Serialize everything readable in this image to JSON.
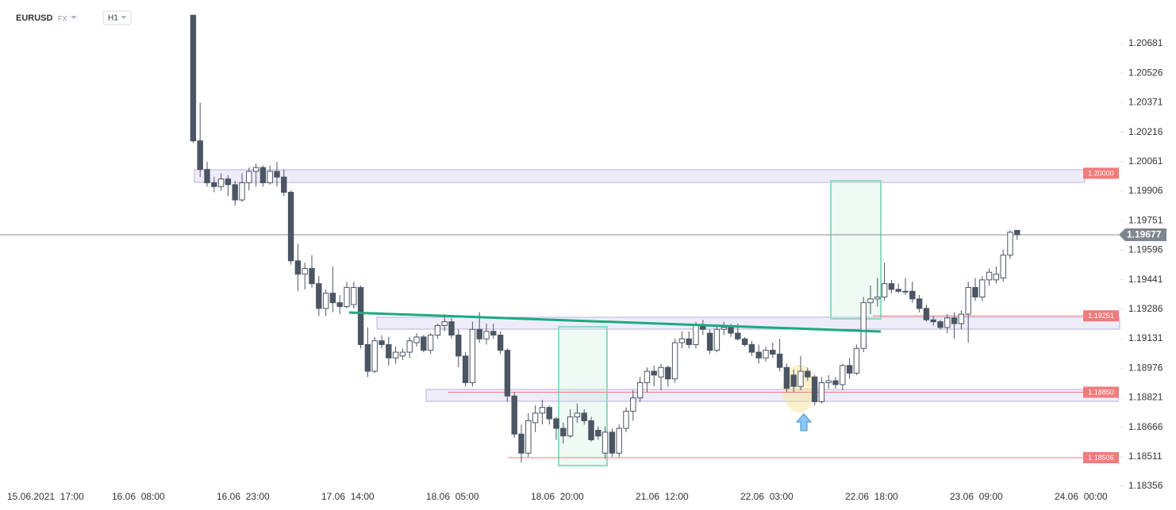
{
  "header": {
    "symbol": "EURUSD",
    "market": "FX",
    "interval": "H1"
  },
  "chart_data": {
    "type": "candlestick",
    "categories": [
      "15.06.2021  17:00",
      null,
      null,
      null,
      null,
      null,
      null,
      null,
      null,
      null,
      null,
      null,
      null,
      null,
      null,
      "16.06  08:00",
      null,
      null,
      null,
      null,
      null,
      null,
      null,
      null,
      null,
      null,
      null,
      null,
      null,
      null,
      "16.06  23:00",
      null,
      null,
      null,
      null,
      null,
      null,
      null,
      null,
      null,
      null,
      null,
      null,
      null,
      null,
      "17.06  14:00",
      null,
      null,
      null,
      null,
      null,
      null,
      null,
      null,
      null,
      null,
      null,
      null,
      null,
      null,
      "18.06  05:00",
      null,
      null,
      null,
      null,
      null,
      null,
      null,
      null,
      null,
      null,
      null,
      null,
      null,
      null,
      "18.06  20:00",
      null,
      null,
      null,
      null,
      null,
      null,
      null,
      null,
      null,
      null,
      null,
      null,
      null,
      null,
      "21.06  12:00",
      null,
      null,
      null,
      null,
      null,
      null,
      null,
      null,
      null,
      null,
      null,
      null,
      null,
      null,
      "22.06  03:00",
      null,
      null,
      null,
      null,
      null,
      null,
      null,
      null,
      null,
      null,
      null,
      null,
      null,
      null,
      "22.06  18:00",
      null,
      null,
      null,
      null,
      null,
      null,
      null,
      null,
      null,
      null,
      null,
      null,
      null,
      null,
      "23.06  09:00",
      null,
      null,
      null,
      null,
      null,
      null,
      null,
      null,
      null,
      null,
      null,
      null,
      null,
      null,
      "24.06  00:00"
    ],
    "open": [
      null,
      null,
      null,
      null,
      null,
      null,
      null,
      null,
      null,
      null,
      null,
      null,
      null,
      null,
      null,
      null,
      null,
      null,
      null,
      null,
      null,
      null,
      null,
      1.2083,
      1.2017,
      1.2002,
      1.1995,
      1.1993,
      1.1997,
      1.1994,
      1.1986,
      1.1995,
      1.2001,
      1.2003,
      1.1995,
      1.2001,
      1.1998,
      1.199,
      1.1954,
      1.1947,
      1.195,
      1.1942,
      1.1929,
      1.1937,
      1.1932,
      1.193,
      1.1931,
      1.194,
      1.191,
      1.1896,
      1.1912,
      1.191,
      1.1903,
      1.1904,
      1.1906,
      1.1911,
      1.1914,
      1.1907,
      1.1915,
      1.192,
      1.1922,
      1.1915,
      1.1904,
      1.189,
      1.1918,
      1.1913,
      1.1917,
      1.1915,
      1.1907,
      1.1883,
      1.1863,
      1.1853,
      1.1869,
      1.1874,
      1.1877,
      1.1871,
      1.1866,
      1.1862,
      1.1872,
      1.1874,
      1.187,
      1.1865,
      1.1853,
      1.1864,
      1.1853,
      1.1866,
      1.1875,
      1.1882,
      1.189,
      1.1896,
      1.1893,
      1.1898,
      1.1892,
      1.1911,
      1.1913,
      1.191,
      1.192,
      1.1916,
      1.1907,
      1.1918,
      1.1919,
      1.1916,
      1.1913,
      1.191,
      1.1906,
      1.1903,
      1.1907,
      1.1905,
      1.1898,
      1.1894,
      1.1888,
      1.1896,
      1.1893,
      1.188,
      1.189,
      1.1891,
      1.1889,
      1.1899,
      1.1895,
      1.1908,
      1.1932,
      1.1934,
      1.1935,
      1.1942,
      1.1939,
      1.1938,
      1.1938,
      1.1934,
      1.1929,
      1.1923,
      1.1922,
      1.1919,
      1.1924,
      1.1921,
      1.1926,
      1.194,
      1.1935,
      1.1944,
      1.1944,
      1.1945,
      1.1957,
      1.197,
      null,
      null,
      null,
      null,
      null,
      null,
      null,
      null,
      null
    ],
    "high": [
      null,
      null,
      null,
      null,
      null,
      null,
      null,
      null,
      null,
      null,
      null,
      null,
      null,
      null,
      null,
      null,
      null,
      null,
      null,
      null,
      null,
      null,
      null,
      1.2083,
      1.2037,
      1.2006,
      1.1998,
      1.2,
      1.1999,
      1.1996,
      1.2,
      1.2003,
      1.2005,
      1.2004,
      1.2004,
      1.2006,
      1.2002,
      1.1991,
      1.1963,
      1.1953,
      1.1957,
      1.1946,
      1.1939,
      1.1951,
      1.1936,
      1.1943,
      1.1943,
      1.1941,
      1.1919,
      1.1914,
      1.1915,
      1.1914,
      1.1909,
      1.1908,
      1.1914,
      1.1916,
      1.1915,
      1.1916,
      1.1921,
      1.1926,
      1.1924,
      1.1918,
      1.1906,
      1.1922,
      1.1927,
      1.1921,
      1.1921,
      1.1917,
      1.1908,
      1.1885,
      1.1868,
      1.1874,
      1.1878,
      1.1881,
      1.1878,
      1.1872,
      1.1869,
      1.1876,
      1.1879,
      1.1876,
      1.1872,
      1.1867,
      1.1867,
      1.1866,
      1.1868,
      1.1877,
      1.1886,
      1.1893,
      1.1898,
      1.1899,
      1.19,
      1.1899,
      1.1913,
      1.1917,
      1.1917,
      1.1922,
      1.1923,
      1.1918,
      1.192,
      1.1922,
      1.1921,
      1.1921,
      1.1914,
      1.1912,
      1.191,
      1.1909,
      1.1911,
      1.1913,
      1.19,
      1.1897,
      1.1904,
      1.1898,
      1.1894,
      1.1893,
      1.1894,
      1.1893,
      1.19,
      1.1903,
      1.191,
      1.1935,
      1.1941,
      1.1945,
      1.1953,
      1.1944,
      1.1942,
      1.1945,
      1.1943,
      1.1936,
      1.1931,
      1.1925,
      1.1923,
      1.1926,
      1.1927,
      1.1928,
      1.1943,
      1.1945,
      1.1946,
      1.195,
      1.1951,
      1.196,
      1.197,
      1.197,
      null,
      null,
      null,
      null,
      null,
      null,
      null,
      null,
      null
    ],
    "low": [
      null,
      null,
      null,
      null,
      null,
      null,
      null,
      null,
      null,
      null,
      null,
      null,
      null,
      null,
      null,
      null,
      null,
      null,
      null,
      null,
      null,
      null,
      null,
      1.2016,
      1.1998,
      1.1993,
      1.199,
      1.1991,
      1.1988,
      1.1983,
      1.1985,
      1.1991,
      1.1993,
      1.1993,
      1.1994,
      1.1993,
      1.1988,
      1.1952,
      1.1938,
      1.1939,
      1.194,
      1.1925,
      1.1925,
      1.1927,
      1.1926,
      1.1929,
      1.1929,
      1.1908,
      1.1893,
      1.1895,
      1.1908,
      1.1899,
      1.19,
      1.1902,
      1.1903,
      1.1909,
      1.1906,
      1.1905,
      1.1913,
      1.1917,
      1.1913,
      1.1898,
      1.1888,
      1.1888,
      1.1911,
      1.191,
      1.1913,
      1.1905,
      1.188,
      1.1861,
      1.1848,
      1.1851,
      1.1864,
      1.1868,
      1.1868,
      1.186,
      1.1858,
      1.1861,
      1.1869,
      1.1868,
      1.1859,
      1.186,
      1.185,
      1.1851,
      1.1851,
      1.1864,
      1.187,
      1.188,
      1.1885,
      1.1888,
      1.1886,
      1.1888,
      1.189,
      1.1908,
      1.1908,
      1.1908,
      1.1915,
      1.1905,
      1.1906,
      1.1915,
      1.1914,
      1.1912,
      1.1909,
      1.1904,
      1.19,
      1.1901,
      1.1903,
      1.1896,
      1.1885,
      1.1885,
      1.1886,
      1.1891,
      1.1878,
      1.1879,
      1.1887,
      1.1887,
      1.1886,
      1.1892,
      1.1894,
      1.1906,
      1.1926,
      1.193,
      1.1933,
      1.1937,
      1.1937,
      1.1936,
      1.1932,
      1.1927,
      1.1922,
      1.192,
      1.1918,
      1.1916,
      1.1913,
      1.1918,
      1.1911,
      1.1933,
      1.1933,
      1.1941,
      1.1942,
      1.1943,
      1.1955,
      1.1965,
      null,
      null,
      null,
      null,
      null,
      null,
      null,
      null,
      null
    ],
    "close": [
      null,
      null,
      null,
      null,
      null,
      null,
      null,
      null,
      null,
      null,
      null,
      null,
      null,
      null,
      null,
      null,
      null,
      null,
      null,
      null,
      null,
      null,
      null,
      1.2017,
      1.2002,
      1.1995,
      1.1993,
      1.1997,
      1.1994,
      1.1986,
      1.1995,
      1.2001,
      1.2003,
      1.1995,
      1.2001,
      1.1998,
      1.199,
      1.1954,
      1.1947,
      1.195,
      1.1942,
      1.1929,
      1.1937,
      1.1932,
      1.193,
      1.194,
      1.194,
      1.191,
      1.1896,
      1.1912,
      1.191,
      1.1903,
      1.1906,
      1.1906,
      1.1912,
      1.1914,
      1.1907,
      1.1915,
      1.192,
      1.1922,
      1.1915,
      1.1904,
      1.189,
      1.1918,
      1.1913,
      1.1917,
      1.1915,
      1.1907,
      1.1883,
      1.1863,
      1.1853,
      1.187,
      1.1874,
      1.1877,
      1.1871,
      1.1866,
      1.1862,
      1.1872,
      1.1874,
      1.187,
      1.186,
      1.1862,
      1.1864,
      1.1853,
      1.1866,
      1.1875,
      1.1882,
      1.189,
      1.1896,
      1.1894,
      1.1898,
      1.1892,
      1.1911,
      1.1913,
      1.191,
      1.192,
      1.1918,
      1.1907,
      1.1918,
      1.1919,
      1.1916,
      1.1913,
      1.191,
      1.1906,
      1.1903,
      1.1907,
      1.1905,
      1.1898,
      1.1887,
      1.1888,
      1.1896,
      1.1893,
      1.188,
      1.189,
      1.1891,
      1.1889,
      1.1899,
      1.1895,
      1.1908,
      1.1932,
      1.1934,
      1.1935,
      1.1942,
      1.1939,
      1.1938,
      1.1938,
      1.1934,
      1.1929,
      1.1923,
      1.1922,
      1.1919,
      1.1924,
      1.1921,
      1.1926,
      1.194,
      1.1935,
      1.1944,
      1.1948,
      1.1947,
      1.1957,
      1.1969,
      1.19677,
      null,
      null,
      null,
      null,
      null,
      null,
      null,
      null,
      null
    ],
    "up_color": "#ffffff",
    "down_color": "#4b5563",
    "ylim": [
      1.18327,
      1.2091
    ],
    "yticks": [
      1.20681,
      1.20526,
      1.20371,
      1.20216,
      1.20061,
      1.19906,
      1.19751,
      1.19596,
      1.19441,
      1.19286,
      1.19131,
      1.18976,
      1.18821,
      1.18666,
      1.18511,
      1.18356
    ],
    "levels": [
      {
        "value": 1.2,
        "label": "1.20000"
      },
      {
        "value": 1.19251,
        "label": "1.19251"
      },
      {
        "value": 1.1885,
        "label": "1.18850"
      },
      {
        "value": 1.18506,
        "label": "1.18506"
      }
    ],
    "level_color": "#ef7b7b",
    "current_price": 1.19677
  }
}
